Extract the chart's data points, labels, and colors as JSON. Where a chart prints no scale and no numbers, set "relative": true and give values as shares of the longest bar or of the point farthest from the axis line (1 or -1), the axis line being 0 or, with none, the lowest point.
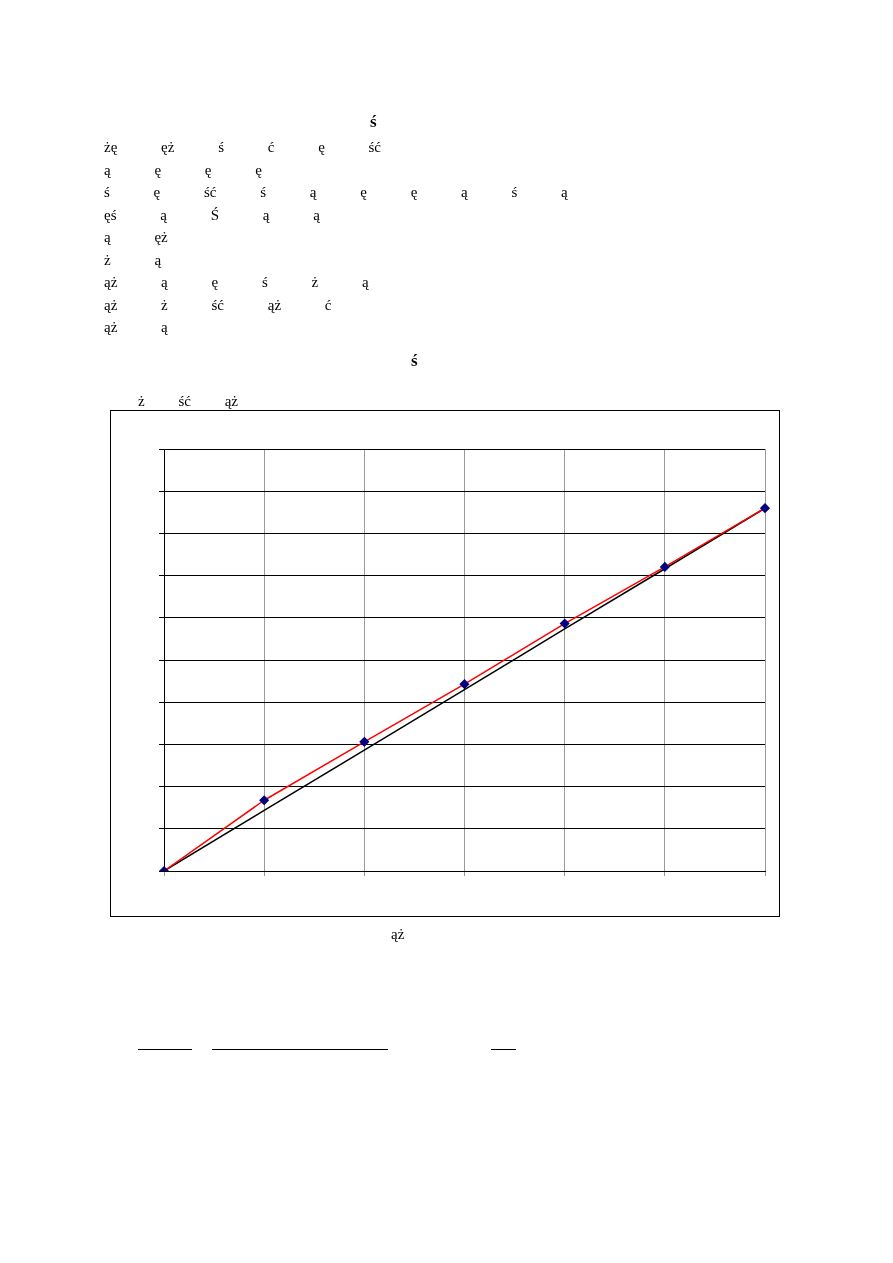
{
  "chart_data": {
    "type": "line",
    "title": "ś",
    "annotations": [
      "ś",
      "żę ęż ś ć ę ść",
      "ą ę ę ę",
      "ś ę ść ś ą ę ę ą ś ą",
      "ęś ą Ś ą ą",
      "ą ęż",
      "ż ą",
      "ąż ą ę ś ż ą",
      "ąż ż ść ąż ć",
      "ąż ą",
      "ż ść ąż"
    ],
    "xlabel": "ąż",
    "categories": [
      null,
      null,
      null,
      null,
      null,
      null,
      null
    ],
    "relative": true,
    "grid": true,
    "legend": false,
    "series": [
      {
        "color": "#ff0000",
        "marker": "diamond",
        "values": [
          0,
          0.195,
          0.356,
          0.515,
          0.682,
          0.838,
          1
        ]
      },
      {
        "color": "#000000",
        "marker": "none",
        "values": [
          0,
          0.167,
          0.333,
          0.5,
          0.667,
          0.833,
          1
        ]
      }
    ]
  }
}
